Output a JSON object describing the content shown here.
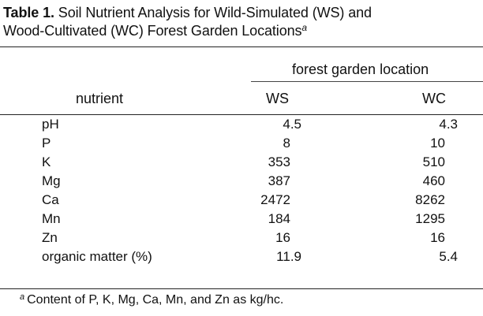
{
  "caption": {
    "label": "Table 1.",
    "line1": "Soil Nutrient Analysis for Wild-Simulated (WS) and",
    "line2": "Wood-Cultivated (WC) Forest Garden Locations",
    "marker": "a"
  },
  "header": {
    "group": "forest garden location",
    "nutrient": "nutrient",
    "ws": "WS",
    "wc": "WC"
  },
  "rows": [
    {
      "name": "pH",
      "ws": "4.5",
      "wc": "4.3"
    },
    {
      "name": "P",
      "ws": "8",
      "wc": "10"
    },
    {
      "name": "K",
      "ws": "353",
      "wc": "510"
    },
    {
      "name": "Mg",
      "ws": "387",
      "wc": "460"
    },
    {
      "name": "Ca",
      "ws": "2472",
      "wc": "8262"
    },
    {
      "name": "Mn",
      "ws": "184",
      "wc": "1295"
    },
    {
      "name": "Zn",
      "ws": "16",
      "wc": "16"
    },
    {
      "name": "organic matter (%)",
      "ws": "11.9",
      "wc": "5.4"
    }
  ],
  "footnote": {
    "marker": "a",
    "text": "Content of P, K, Mg, Ca, Mn, and Zn as kg/hc."
  }
}
